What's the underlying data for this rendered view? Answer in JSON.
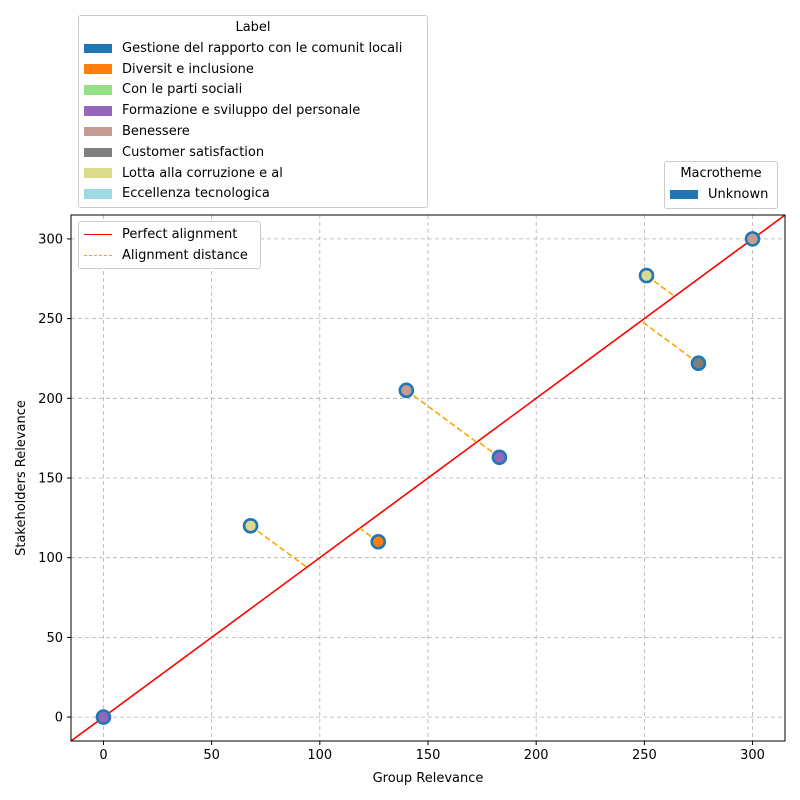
{
  "chart_data": {
    "type": "scatter",
    "xlabel": "Group Relevance",
    "ylabel": "Stakeholders Relevance",
    "xlim": [
      -15,
      315
    ],
    "ylim": [
      -15,
      315
    ],
    "xticks": [
      0,
      50,
      100,
      150,
      200,
      250,
      300
    ],
    "yticks": [
      0,
      50,
      100,
      150,
      200,
      250,
      300
    ],
    "grid": true,
    "points": [
      {
        "x": 0,
        "y": 0,
        "fill": "#9467bd",
        "edge": "#1f77b4"
      },
      {
        "x": 68,
        "y": 120,
        "fill": "#dbdb8d",
        "edge": "#1f77b4"
      },
      {
        "x": 127,
        "y": 110,
        "fill": "#ff7f0e",
        "edge": "#1f77b4"
      },
      {
        "x": 140,
        "y": 205,
        "fill": "#c49c94",
        "edge": "#1f77b4"
      },
      {
        "x": 183,
        "y": 163,
        "fill": "#9467bd",
        "edge": "#1f77b4"
      },
      {
        "x": 251,
        "y": 277,
        "fill": "#dbdb8d",
        "edge": "#1f77b4"
      },
      {
        "x": 275,
        "y": 222,
        "fill": "#7f7f7f",
        "edge": "#1f77b4"
      },
      {
        "x": 300,
        "y": 300,
        "fill": "#c49c94",
        "edge": "#1f77b4"
      }
    ],
    "perfect_alignment": {
      "color": "#ff0000"
    },
    "alignment_distance": {
      "color": "#ffa500"
    },
    "line_legend": {
      "location": "upper-left",
      "entries": [
        {
          "label": "Perfect alignment",
          "color": "#ff0000",
          "style": "solid"
        },
        {
          "label": "Alignment distance",
          "color": "#ffa500",
          "style": "dashed"
        }
      ]
    },
    "label_legend": {
      "title": "Label",
      "location": "above-left",
      "entries": [
        {
          "label": "Gestione del rapporto con le comunit locali",
          "color": "#1f77b4"
        },
        {
          "label": "Diversit e inclusione",
          "color": "#ff7f0e"
        },
        {
          "label": "Con le parti sociali",
          "color": "#98df8a"
        },
        {
          "label": "Formazione e sviluppo del personale",
          "color": "#9467bd"
        },
        {
          "label": "Benessere",
          "color": "#c49c94"
        },
        {
          "label": "Customer satisfaction",
          "color": "#7f7f7f"
        },
        {
          "label": "Lotta alla corruzione e al",
          "color": "#dbdb8d"
        },
        {
          "label": "Eccellenza tecnologica",
          "color": "#9edae5"
        }
      ]
    },
    "macro_legend": {
      "title": "Macrotheme",
      "location": "above-right",
      "entries": [
        {
          "label": "Unknown",
          "color": "#1f77b4"
        }
      ]
    }
  }
}
